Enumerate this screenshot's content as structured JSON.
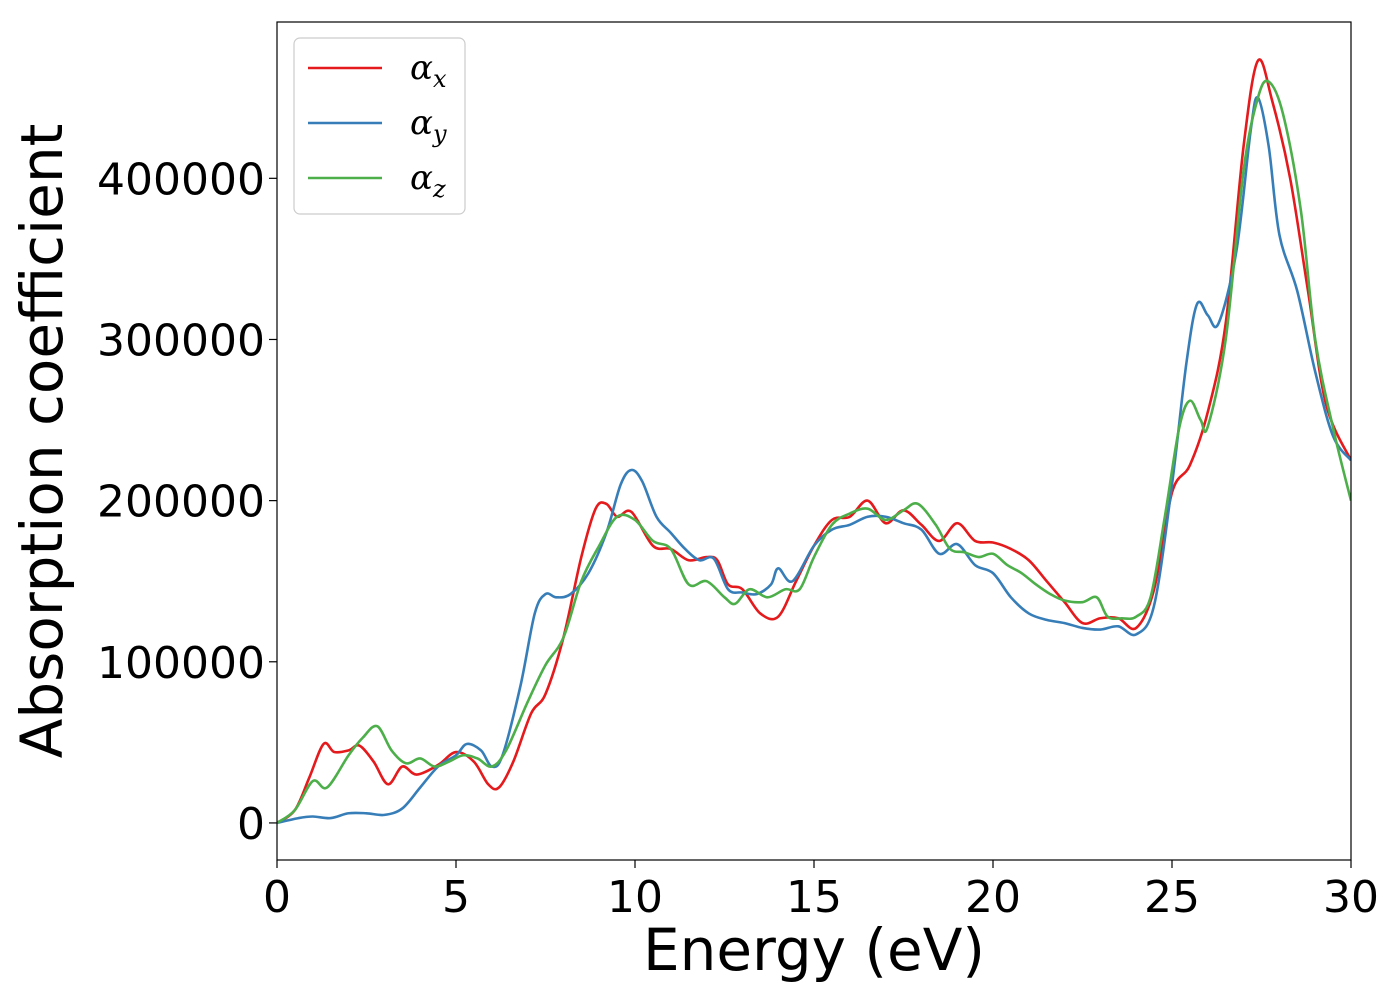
{
  "chart_data": {
    "type": "line",
    "title": "",
    "xlabel": "Energy (eV)",
    "ylabel": "Absorption coefficient",
    "xlim": [
      0,
      30
    ],
    "ylim": [
      -23000,
      497000
    ],
    "xticks": [
      0,
      5,
      10,
      15,
      20,
      25,
      30
    ],
    "yticks": [
      0,
      100000,
      200000,
      300000,
      400000
    ],
    "grid": false,
    "legend_position": "top-left",
    "series": [
      {
        "name": "α_x",
        "symbol": "α",
        "subscript": "x",
        "color": "#e41a1c",
        "points": [
          [
            0,
            0
          ],
          [
            0.5,
            8000
          ],
          [
            0.9,
            28000
          ],
          [
            1.3,
            49000
          ],
          [
            1.6,
            44000
          ],
          [
            2.0,
            45000
          ],
          [
            2.3,
            48000
          ],
          [
            2.7,
            38000
          ],
          [
            3.1,
            24000
          ],
          [
            3.5,
            35000
          ],
          [
            3.9,
            30000
          ],
          [
            4.5,
            36000
          ],
          [
            5.0,
            44000
          ],
          [
            5.5,
            38000
          ],
          [
            5.9,
            24000
          ],
          [
            6.2,
            22000
          ],
          [
            6.6,
            38000
          ],
          [
            7.1,
            68000
          ],
          [
            7.5,
            80000
          ],
          [
            8.0,
            115000
          ],
          [
            8.5,
            165000
          ],
          [
            8.9,
            195000
          ],
          [
            9.2,
            198000
          ],
          [
            9.5,
            190000
          ],
          [
            9.9,
            193000
          ],
          [
            10.5,
            172000
          ],
          [
            11.0,
            170000
          ],
          [
            11.5,
            163000
          ],
          [
            12.0,
            165000
          ],
          [
            12.3,
            163000
          ],
          [
            12.6,
            148000
          ],
          [
            13.0,
            145000
          ],
          [
            13.5,
            130000
          ],
          [
            14.0,
            128000
          ],
          [
            14.5,
            150000
          ],
          [
            15.0,
            172000
          ],
          [
            15.5,
            188000
          ],
          [
            16.0,
            190000
          ],
          [
            16.5,
            200000
          ],
          [
            17.0,
            186000
          ],
          [
            17.5,
            194000
          ],
          [
            18.0,
            185000
          ],
          [
            18.5,
            175000
          ],
          [
            19.0,
            186000
          ],
          [
            19.5,
            175000
          ],
          [
            20.0,
            174000
          ],
          [
            20.5,
            170000
          ],
          [
            21.0,
            163000
          ],
          [
            21.5,
            150000
          ],
          [
            22.0,
            137000
          ],
          [
            22.5,
            124000
          ],
          [
            23.0,
            127000
          ],
          [
            23.5,
            127000
          ],
          [
            24.0,
            121000
          ],
          [
            24.5,
            145000
          ],
          [
            25.0,
            205000
          ],
          [
            25.5,
            222000
          ],
          [
            26.0,
            255000
          ],
          [
            26.5,
            310000
          ],
          [
            27.0,
            420000
          ],
          [
            27.4,
            473000
          ],
          [
            27.8,
            448000
          ],
          [
            28.3,
            400000
          ],
          [
            28.8,
            330000
          ],
          [
            29.3,
            260000
          ],
          [
            30.0,
            225000
          ]
        ]
      },
      {
        "name": "α_y",
        "symbol": "α",
        "subscript": "y",
        "color": "#377eb8",
        "points": [
          [
            0,
            0
          ],
          [
            0.6,
            3000
          ],
          [
            1.0,
            4000
          ],
          [
            1.5,
            3000
          ],
          [
            2.0,
            6000
          ],
          [
            2.5,
            6000
          ],
          [
            3.0,
            5000
          ],
          [
            3.5,
            9000
          ],
          [
            4.0,
            22000
          ],
          [
            4.5,
            35000
          ],
          [
            5.0,
            42000
          ],
          [
            5.3,
            49000
          ],
          [
            5.7,
            45000
          ],
          [
            6.0,
            35000
          ],
          [
            6.3,
            42000
          ],
          [
            6.8,
            85000
          ],
          [
            7.2,
            130000
          ],
          [
            7.5,
            142000
          ],
          [
            7.8,
            140000
          ],
          [
            8.2,
            142000
          ],
          [
            8.7,
            155000
          ],
          [
            9.2,
            180000
          ],
          [
            9.6,
            210000
          ],
          [
            9.9,
            219000
          ],
          [
            10.2,
            212000
          ],
          [
            10.6,
            190000
          ],
          [
            11.0,
            180000
          ],
          [
            11.4,
            170000
          ],
          [
            11.8,
            163000
          ],
          [
            12.2,
            164000
          ],
          [
            12.6,
            145000
          ],
          [
            13.0,
            143000
          ],
          [
            13.4,
            142000
          ],
          [
            13.8,
            148000
          ],
          [
            14.0,
            158000
          ],
          [
            14.4,
            150000
          ],
          [
            15.0,
            172000
          ],
          [
            15.5,
            182000
          ],
          [
            16.0,
            185000
          ],
          [
            16.5,
            190000
          ],
          [
            17.0,
            190000
          ],
          [
            17.5,
            186000
          ],
          [
            18.0,
            182000
          ],
          [
            18.5,
            167000
          ],
          [
            19.0,
            173000
          ],
          [
            19.5,
            160000
          ],
          [
            20.0,
            155000
          ],
          [
            20.5,
            140000
          ],
          [
            21.0,
            130000
          ],
          [
            21.5,
            126000
          ],
          [
            22.0,
            124000
          ],
          [
            22.5,
            121000
          ],
          [
            23.0,
            120000
          ],
          [
            23.5,
            122000
          ],
          [
            24.0,
            117000
          ],
          [
            24.5,
            135000
          ],
          [
            25.0,
            210000
          ],
          [
            25.4,
            285000
          ],
          [
            25.7,
            322000
          ],
          [
            26.0,
            315000
          ],
          [
            26.3,
            310000
          ],
          [
            26.8,
            355000
          ],
          [
            27.2,
            430000
          ],
          [
            27.4,
            450000
          ],
          [
            27.7,
            420000
          ],
          [
            28.0,
            365000
          ],
          [
            28.5,
            330000
          ],
          [
            29.0,
            280000
          ],
          [
            29.5,
            240000
          ],
          [
            30.0,
            225000
          ]
        ]
      },
      {
        "name": "α_z",
        "symbol": "α",
        "subscript": "z",
        "color": "#4daf4a",
        "points": [
          [
            0,
            0
          ],
          [
            0.5,
            8000
          ],
          [
            1.0,
            26000
          ],
          [
            1.4,
            22000
          ],
          [
            2.0,
            42000
          ],
          [
            2.4,
            53000
          ],
          [
            2.8,
            60000
          ],
          [
            3.2,
            45000
          ],
          [
            3.6,
            37000
          ],
          [
            4.0,
            40000
          ],
          [
            4.4,
            35000
          ],
          [
            4.8,
            38000
          ],
          [
            5.2,
            42000
          ],
          [
            5.6,
            40000
          ],
          [
            6.0,
            35000
          ],
          [
            6.4,
            45000
          ],
          [
            7.0,
            75000
          ],
          [
            7.5,
            98000
          ],
          [
            8.0,
            115000
          ],
          [
            8.5,
            150000
          ],
          [
            9.0,
            172000
          ],
          [
            9.5,
            190000
          ],
          [
            10.0,
            188000
          ],
          [
            10.5,
            175000
          ],
          [
            11.0,
            170000
          ],
          [
            11.5,
            148000
          ],
          [
            12.0,
            150000
          ],
          [
            12.5,
            140000
          ],
          [
            12.8,
            136000
          ],
          [
            13.2,
            145000
          ],
          [
            13.7,
            140000
          ],
          [
            14.2,
            145000
          ],
          [
            14.6,
            145000
          ],
          [
            15.0,
            165000
          ],
          [
            15.5,
            185000
          ],
          [
            16.0,
            192000
          ],
          [
            16.5,
            195000
          ],
          [
            17.0,
            188000
          ],
          [
            17.5,
            194000
          ],
          [
            17.9,
            198000
          ],
          [
            18.4,
            185000
          ],
          [
            18.8,
            170000
          ],
          [
            19.2,
            168000
          ],
          [
            19.6,
            165000
          ],
          [
            20.0,
            167000
          ],
          [
            20.4,
            160000
          ],
          [
            20.8,
            155000
          ],
          [
            21.2,
            148000
          ],
          [
            21.6,
            142000
          ],
          [
            22.0,
            138000
          ],
          [
            22.5,
            137000
          ],
          [
            22.9,
            140000
          ],
          [
            23.2,
            128000
          ],
          [
            23.6,
            127000
          ],
          [
            24.0,
            128000
          ],
          [
            24.4,
            140000
          ],
          [
            24.8,
            190000
          ],
          [
            25.2,
            245000
          ],
          [
            25.5,
            262000
          ],
          [
            25.8,
            250000
          ],
          [
            26.0,
            246000
          ],
          [
            26.5,
            300000
          ],
          [
            27.0,
            405000
          ],
          [
            27.4,
            450000
          ],
          [
            27.7,
            460000
          ],
          [
            28.1,
            440000
          ],
          [
            28.6,
            380000
          ],
          [
            29.0,
            300000
          ],
          [
            29.5,
            245000
          ],
          [
            30.0,
            200000
          ]
        ]
      }
    ]
  }
}
